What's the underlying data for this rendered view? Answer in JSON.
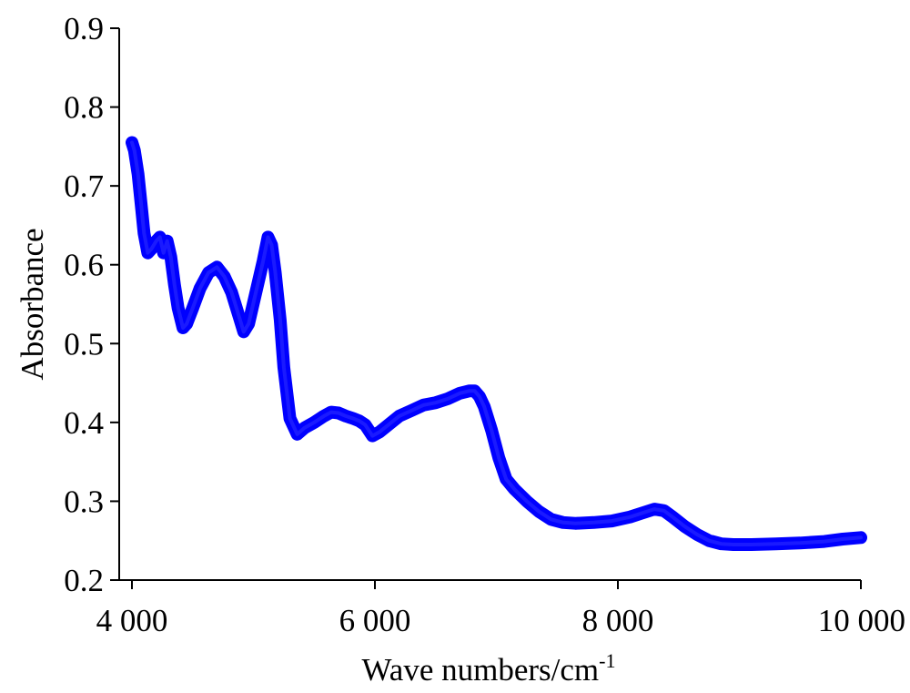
{
  "chart_data": {
    "type": "line",
    "title": "",
    "xlabel": "Wave numbers/cm",
    "xlabel_superscript": "-1",
    "ylabel": "Absorbance",
    "xlim": [
      4000,
      10000
    ],
    "ylim": [
      0.2,
      0.9
    ],
    "xticks": [
      4000,
      6000,
      8000,
      10000
    ],
    "xtick_labels": [
      "4 000",
      "6 000",
      "8 000",
      "10 000"
    ],
    "yticks": [
      0.2,
      0.3,
      0.4,
      0.5,
      0.6,
      0.7,
      0.8,
      0.9
    ],
    "ytick_labels": [
      "0.2",
      "0.3",
      "0.4",
      "0.5",
      "0.6",
      "0.7",
      "0.8",
      "0.9"
    ],
    "grid": false,
    "color": "#0000ff",
    "series": [
      {
        "x": [
          4000,
          4020,
          4050,
          4080,
          4100,
          4130,
          4160,
          4200,
          4230,
          4260,
          4290,
          4320,
          4350,
          4380,
          4420,
          4450,
          4500,
          4560,
          4630,
          4700,
          4760,
          4820,
          4880,
          4920,
          4960,
          5020,
          5080,
          5120,
          5150,
          5180,
          5220,
          5250,
          5300,
          5360,
          5420,
          5500,
          5580,
          5640,
          5700,
          5760,
          5820,
          5870,
          5920,
          5980,
          6040,
          6120,
          6200,
          6300,
          6400,
          6500,
          6600,
          6700,
          6780,
          6820,
          6860,
          6900,
          6960,
          7020,
          7080,
          7150,
          7250,
          7350,
          7450,
          7550,
          7650,
          7800,
          7950,
          8100,
          8200,
          8300,
          8380,
          8450,
          8550,
          8650,
          8750,
          8850,
          8950,
          9100,
          9300,
          9500,
          9700,
          9850,
          10000
        ],
        "y": [
          0.755,
          0.745,
          0.715,
          0.67,
          0.64,
          0.615,
          0.62,
          0.63,
          0.635,
          0.615,
          0.63,
          0.61,
          0.575,
          0.545,
          0.52,
          0.525,
          0.545,
          0.57,
          0.59,
          0.597,
          0.585,
          0.565,
          0.535,
          0.515,
          0.525,
          0.565,
          0.605,
          0.635,
          0.625,
          0.59,
          0.53,
          0.47,
          0.405,
          0.385,
          0.393,
          0.4,
          0.408,
          0.413,
          0.412,
          0.408,
          0.405,
          0.402,
          0.397,
          0.383,
          0.388,
          0.398,
          0.408,
          0.415,
          0.422,
          0.425,
          0.43,
          0.437,
          0.44,
          0.44,
          0.433,
          0.42,
          0.39,
          0.355,
          0.328,
          0.315,
          0.3,
          0.287,
          0.277,
          0.273,
          0.272,
          0.273,
          0.275,
          0.28,
          0.285,
          0.29,
          0.288,
          0.28,
          0.268,
          0.258,
          0.25,
          0.246,
          0.245,
          0.245,
          0.246,
          0.247,
          0.249,
          0.252,
          0.254
        ]
      }
    ]
  }
}
